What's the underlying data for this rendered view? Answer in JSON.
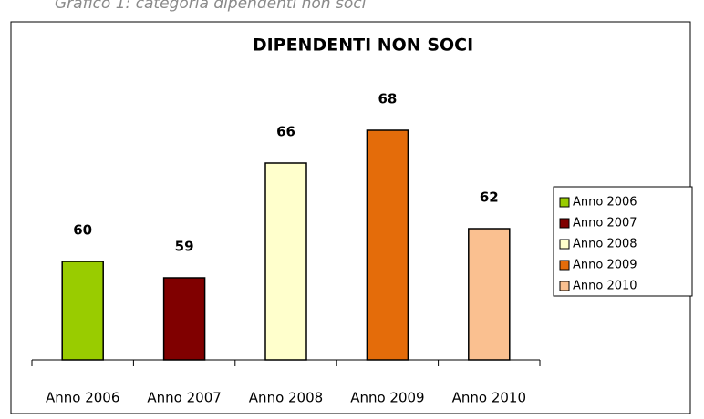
{
  "caption": "Grafico 1: categoria dipendenti non soci",
  "chart_data": {
    "type": "bar",
    "title": "DIPENDENTI NON SOCI",
    "categories": [
      "Anno 2006",
      "Anno 2007",
      "Anno 2008",
      "Anno 2009",
      "Anno 2010"
    ],
    "values": [
      60,
      59,
      66,
      68,
      62
    ],
    "colors": [
      "#99cc00",
      "#800000",
      "#ffffcc",
      "#e46c0a",
      "#fac090"
    ],
    "ylim": [
      54,
      70
    ],
    "legend": "right"
  }
}
